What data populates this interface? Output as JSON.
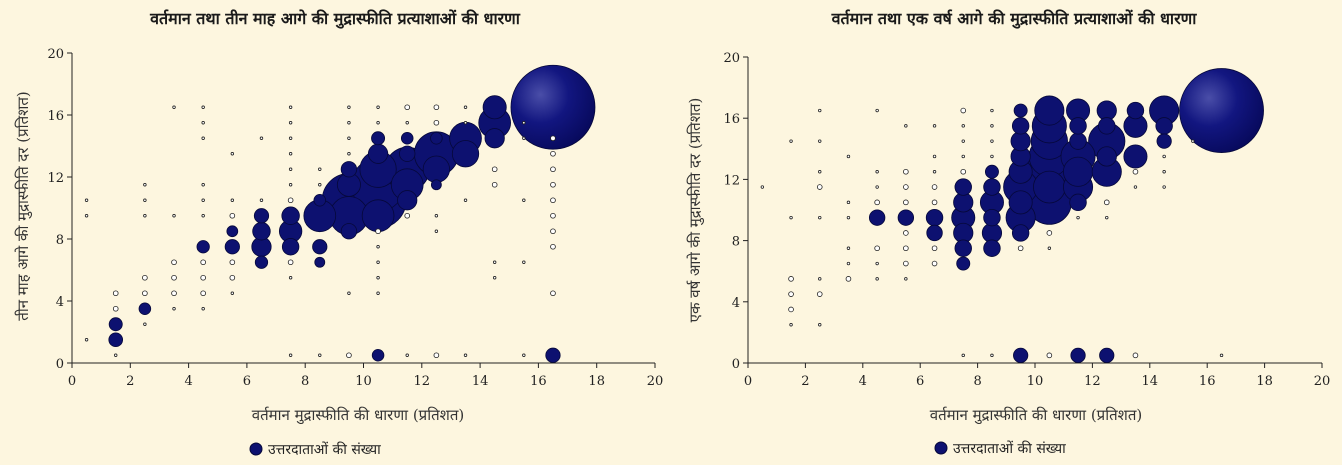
{
  "colors": {
    "background": "#fdf6df",
    "bubble_fill": "#0d1170",
    "bubble_stroke": "#06083a",
    "small_marker_stroke": "#222222"
  },
  "chart_data": [
    {
      "type": "scatter",
      "title": "वर्तमान तथा तीन माह आगे की मुद्रास्फीति प्रत्याशाओं की धारणा",
      "xlabel": "वर्तमान मुद्रास्फीति की धारणा (प्रतिशत)",
      "ylabel": "तीन माह आगे की मुद्रास्फीति दर (प्रतिशत)",
      "xlim": [
        0,
        20
      ],
      "ylim": [
        0,
        20
      ],
      "xticks": [
        "0",
        "2",
        "4",
        "6",
        "8",
        "10",
        "12",
        "14",
        "16",
        "18",
        "20"
      ],
      "yticks": [
        "0",
        "4",
        "8",
        "12",
        "16",
        "20"
      ],
      "legend": "उत्तरदाताओं की संख्या",
      "grid": false,
      "points": [
        [
          0.5,
          1.5,
          1
        ],
        [
          0.5,
          9.5,
          1
        ],
        [
          0.5,
          10.5,
          1
        ],
        [
          1.5,
          0.5,
          1
        ],
        [
          1.5,
          1.5,
          9
        ],
        [
          1.5,
          2.5,
          8
        ],
        [
          1.5,
          3.5,
          2
        ],
        [
          1.5,
          4.5,
          2
        ],
        [
          2.5,
          2.5,
          1
        ],
        [
          2.5,
          3.5,
          6
        ],
        [
          2.5,
          4.5,
          2
        ],
        [
          2.5,
          5.5,
          2
        ],
        [
          2.5,
          9.5,
          1
        ],
        [
          2.5,
          10.5,
          1
        ],
        [
          2.5,
          11.5,
          1
        ],
        [
          3.5,
          3.5,
          1
        ],
        [
          3.5,
          4.5,
          2
        ],
        [
          3.5,
          5.5,
          2
        ],
        [
          3.5,
          6.5,
          2
        ],
        [
          3.5,
          9.5,
          1
        ],
        [
          3.5,
          16.5,
          1
        ],
        [
          4.5,
          3.5,
          1
        ],
        [
          4.5,
          4.5,
          2
        ],
        [
          4.5,
          5.5,
          2
        ],
        [
          4.5,
          6.5,
          2
        ],
        [
          4.5,
          7.5,
          7
        ],
        [
          4.5,
          9.5,
          1
        ],
        [
          4.5,
          10.5,
          1
        ],
        [
          4.5,
          11.5,
          1
        ],
        [
          4.5,
          14.5,
          1
        ],
        [
          4.5,
          15.5,
          1
        ],
        [
          4.5,
          16.5,
          1
        ],
        [
          5.5,
          4.5,
          1
        ],
        [
          5.5,
          5.5,
          2
        ],
        [
          5.5,
          6.5,
          2
        ],
        [
          5.5,
          7.5,
          10
        ],
        [
          5.5,
          8.5,
          5
        ],
        [
          5.5,
          9.5,
          2
        ],
        [
          5.5,
          10.5,
          1
        ],
        [
          5.5,
          13.5,
          1
        ],
        [
          6.5,
          6.5,
          7
        ],
        [
          6.5,
          7.5,
          20
        ],
        [
          6.5,
          8.5,
          16
        ],
        [
          6.5,
          9.5,
          10
        ],
        [
          6.5,
          10.5,
          1
        ],
        [
          6.5,
          14.5,
          1
        ],
        [
          7.5,
          0.5,
          1
        ],
        [
          7.5,
          5.5,
          1
        ],
        [
          7.5,
          6.5,
          2
        ],
        [
          7.5,
          7.5,
          14
        ],
        [
          7.5,
          8.5,
          28
        ],
        [
          7.5,
          9.5,
          16
        ],
        [
          7.5,
          10.5,
          2
        ],
        [
          7.5,
          11.5,
          1
        ],
        [
          7.5,
          12.5,
          1
        ],
        [
          7.5,
          13.5,
          1
        ],
        [
          7.5,
          14.5,
          1
        ],
        [
          7.5,
          15.5,
          1
        ],
        [
          7.5,
          16.5,
          1
        ],
        [
          8.5,
          0.5,
          1
        ],
        [
          8.5,
          6.5,
          4
        ],
        [
          8.5,
          7.5,
          10
        ],
        [
          8.5,
          9.5,
          60
        ],
        [
          8.5,
          10.5,
          6
        ],
        [
          8.5,
          11.5,
          1
        ],
        [
          8.5,
          12.5,
          1
        ],
        [
          9.5,
          0.5,
          2
        ],
        [
          9.5,
          4.5,
          1
        ],
        [
          9.5,
          8.5,
          12
        ],
        [
          9.5,
          9.5,
          90
        ],
        [
          9.5,
          10.5,
          180
        ],
        [
          9.5,
          11.5,
          30
        ],
        [
          9.5,
          12.5,
          12
        ],
        [
          9.5,
          13.5,
          1
        ],
        [
          9.5,
          14.5,
          1
        ],
        [
          9.5,
          15.5,
          1
        ],
        [
          9.5,
          16.5,
          1
        ],
        [
          10.5,
          0.5,
          6
        ],
        [
          10.5,
          4.5,
          1
        ],
        [
          10.5,
          5.5,
          1
        ],
        [
          10.5,
          6.5,
          1
        ],
        [
          10.5,
          7.5,
          1
        ],
        [
          10.5,
          8.5,
          2
        ],
        [
          10.5,
          9.5,
          60
        ],
        [
          10.5,
          10.5,
          200
        ],
        [
          10.5,
          11.5,
          180
        ],
        [
          10.5,
          12.5,
          80
        ],
        [
          10.5,
          13.5,
          20
        ],
        [
          10.5,
          14.5,
          8
        ],
        [
          10.5,
          15.5,
          1
        ],
        [
          10.5,
          16.5,
          1
        ],
        [
          11.5,
          0.5,
          1
        ],
        [
          11.5,
          9.5,
          2
        ],
        [
          11.5,
          10.5,
          20
        ],
        [
          11.5,
          11.5,
          60
        ],
        [
          11.5,
          12.5,
          120
        ],
        [
          11.5,
          13.5,
          12
        ],
        [
          11.5,
          14.5,
          6
        ],
        [
          11.5,
          15.5,
          1
        ],
        [
          11.5,
          16.5,
          2
        ],
        [
          12.5,
          0.5,
          2
        ],
        [
          12.5,
          8.5,
          1
        ],
        [
          12.5,
          9.5,
          1
        ],
        [
          12.5,
          11.5,
          4
        ],
        [
          12.5,
          12.5,
          40
        ],
        [
          12.5,
          13.5,
          120
        ],
        [
          12.5,
          14.5,
          6
        ],
        [
          12.5,
          15.5,
          2
        ],
        [
          12.5,
          16.5,
          2
        ],
        [
          13.5,
          0.5,
          1
        ],
        [
          13.5,
          10.5,
          1
        ],
        [
          13.5,
          13.5,
          40
        ],
        [
          13.5,
          14.5,
          60
        ],
        [
          13.5,
          15.5,
          1
        ],
        [
          13.5,
          16.5,
          1
        ],
        [
          14.5,
          5.5,
          1
        ],
        [
          14.5,
          6.5,
          1
        ],
        [
          14.5,
          11.5,
          2
        ],
        [
          14.5,
          12.5,
          2
        ],
        [
          14.5,
          14.5,
          20
        ],
        [
          14.5,
          15.5,
          60
        ],
        [
          14.5,
          16.5,
          30
        ],
        [
          15.5,
          0.5,
          1
        ],
        [
          15.5,
          6.5,
          1
        ],
        [
          15.5,
          10.5,
          1
        ],
        [
          15.5,
          14.5,
          1
        ],
        [
          15.5,
          15.5,
          1
        ],
        [
          16.5,
          0.5,
          10
        ],
        [
          16.5,
          4.5,
          2
        ],
        [
          16.5,
          7.5,
          2
        ],
        [
          16.5,
          8.5,
          2
        ],
        [
          16.5,
          9.5,
          2
        ],
        [
          16.5,
          10.5,
          2
        ],
        [
          16.5,
          11.5,
          2
        ],
        [
          16.5,
          12.5,
          2
        ],
        [
          16.5,
          13.5,
          2
        ],
        [
          16.5,
          14.5,
          2
        ],
        [
          16.5,
          16.5,
          1500
        ]
      ]
    },
    {
      "type": "scatter",
      "title": "वर्तमान तथा एक वर्ष आगे की मुद्रास्फीति प्रत्याशाओं की धारणा",
      "xlabel": "वर्तमान मुद्रास्फीति की धारणा (प्रतिशत)",
      "ylabel": "एक वर्ष आगे की मुद्रास्फीति दर (प्रतिशत)",
      "xlim": [
        0,
        20
      ],
      "ylim": [
        0,
        20
      ],
      "xticks": [
        "0",
        "2",
        "4",
        "6",
        "8",
        "10",
        "12",
        "14",
        "16",
        "18",
        "20"
      ],
      "yticks": [
        "0",
        "4",
        "8",
        "12",
        "16",
        "20"
      ],
      "legend": "उत्तरदाताओं की संख्या",
      "grid": false,
      "points": [
        [
          0.5,
          11.5,
          1
        ],
        [
          1.5,
          2.5,
          1
        ],
        [
          1.5,
          3.5,
          2
        ],
        [
          1.5,
          4.5,
          2
        ],
        [
          1.5,
          5.5,
          2
        ],
        [
          1.5,
          9.5,
          1
        ],
        [
          1.5,
          14.5,
          1
        ],
        [
          2.5,
          2.5,
          1
        ],
        [
          2.5,
          4.5,
          2
        ],
        [
          2.5,
          5.5,
          1
        ],
        [
          2.5,
          9.5,
          1
        ],
        [
          2.5,
          11.5,
          2
        ],
        [
          2.5,
          12.5,
          1
        ],
        [
          2.5,
          14.5,
          1
        ],
        [
          2.5,
          16.5,
          1
        ],
        [
          3.5,
          5.5,
          2
        ],
        [
          3.5,
          6.5,
          1
        ],
        [
          3.5,
          7.5,
          1
        ],
        [
          3.5,
          9.5,
          1
        ],
        [
          3.5,
          10.5,
          1
        ],
        [
          3.5,
          13.5,
          1
        ],
        [
          4.5,
          5.5,
          1
        ],
        [
          4.5,
          6.5,
          1
        ],
        [
          4.5,
          7.5,
          2
        ],
        [
          4.5,
          9.5,
          12
        ],
        [
          4.5,
          10.5,
          2
        ],
        [
          4.5,
          11.5,
          1
        ],
        [
          4.5,
          12.5,
          1
        ],
        [
          4.5,
          16.5,
          1
        ],
        [
          5.5,
          5.5,
          1
        ],
        [
          5.5,
          6.5,
          2
        ],
        [
          5.5,
          7.5,
          2
        ],
        [
          5.5,
          8.5,
          2
        ],
        [
          5.5,
          9.5,
          12
        ],
        [
          5.5,
          10.5,
          2
        ],
        [
          5.5,
          11.5,
          2
        ],
        [
          5.5,
          12.5,
          2
        ],
        [
          5.5,
          15.5,
          1
        ],
        [
          6.5,
          6.5,
          2
        ],
        [
          6.5,
          7.5,
          2
        ],
        [
          6.5,
          8.5,
          12
        ],
        [
          6.5,
          9.5,
          14
        ],
        [
          6.5,
          10.5,
          2
        ],
        [
          6.5,
          11.5,
          2
        ],
        [
          6.5,
          12.5,
          1
        ],
        [
          6.5,
          13.5,
          1
        ],
        [
          6.5,
          15.5,
          1
        ],
        [
          7.5,
          0.5,
          1
        ],
        [
          7.5,
          6.5,
          8
        ],
        [
          7.5,
          7.5,
          14
        ],
        [
          7.5,
          8.5,
          20
        ],
        [
          7.5,
          9.5,
          30
        ],
        [
          7.5,
          10.5,
          20
        ],
        [
          7.5,
          11.5,
          14
        ],
        [
          7.5,
          12.5,
          2
        ],
        [
          7.5,
          13.5,
          1
        ],
        [
          7.5,
          14.5,
          1
        ],
        [
          7.5,
          15.5,
          1
        ],
        [
          7.5,
          16.5,
          2
        ],
        [
          8.5,
          0.5,
          1
        ],
        [
          8.5,
          7.5,
          14
        ],
        [
          8.5,
          8.5,
          20
        ],
        [
          8.5,
          9.5,
          14
        ],
        [
          8.5,
          10.5,
          30
        ],
        [
          8.5,
          11.5,
          14
        ],
        [
          8.5,
          12.5,
          8
        ],
        [
          8.5,
          13.5,
          1
        ],
        [
          8.5,
          14.5,
          1
        ],
        [
          8.5,
          15.5,
          1
        ],
        [
          8.5,
          16.5,
          1
        ],
        [
          9.5,
          0.5,
          10
        ],
        [
          9.5,
          7.5,
          2
        ],
        [
          9.5,
          8.5,
          14
        ],
        [
          9.5,
          9.5,
          50
        ],
        [
          9.5,
          10.5,
          30
        ],
        [
          9.5,
          11.5,
          70
        ],
        [
          9.5,
          12.5,
          30
        ],
        [
          9.5,
          13.5,
          20
        ],
        [
          9.5,
          14.5,
          20
        ],
        [
          9.5,
          15.5,
          14
        ],
        [
          9.5,
          16.5,
          8
        ],
        [
          10.5,
          0.5,
          2
        ],
        [
          10.5,
          7.5,
          1
        ],
        [
          10.5,
          8.5,
          2
        ],
        [
          10.5,
          10.5,
          120
        ],
        [
          10.5,
          11.5,
          60
        ],
        [
          10.5,
          12.5,
          180
        ],
        [
          10.5,
          13.5,
          100
        ],
        [
          10.5,
          14.5,
          80
        ],
        [
          10.5,
          15.5,
          70
        ],
        [
          10.5,
          16.5,
          50
        ],
        [
          11.5,
          0.5,
          10
        ],
        [
          11.5,
          9.5,
          1
        ],
        [
          11.5,
          10.5,
          14
        ],
        [
          11.5,
          11.5,
          50
        ],
        [
          11.5,
          12.5,
          50
        ],
        [
          11.5,
          13.5,
          70
        ],
        [
          11.5,
          14.5,
          14
        ],
        [
          11.5,
          15.5,
          14
        ],
        [
          11.5,
          16.5,
          30
        ],
        [
          12.5,
          0.5,
          10
        ],
        [
          12.5,
          9.5,
          1
        ],
        [
          12.5,
          10.5,
          2
        ],
        [
          12.5,
          12.5,
          50
        ],
        [
          12.5,
          13.5,
          20
        ],
        [
          12.5,
          14.5,
          80
        ],
        [
          12.5,
          15.5,
          14
        ],
        [
          12.5,
          16.5,
          20
        ],
        [
          13.5,
          0.5,
          2
        ],
        [
          13.5,
          11.5,
          1
        ],
        [
          13.5,
          12.5,
          2
        ],
        [
          13.5,
          13.5,
          30
        ],
        [
          13.5,
          15.5,
          30
        ],
        [
          13.5,
          16.5,
          14
        ],
        [
          14.5,
          11.5,
          1
        ],
        [
          14.5,
          12.5,
          1
        ],
        [
          14.5,
          13.5,
          1
        ],
        [
          14.5,
          14.5,
          10
        ],
        [
          14.5,
          15.5,
          14
        ],
        [
          14.5,
          16.5,
          50
        ],
        [
          15.5,
          14.5,
          1
        ],
        [
          16.5,
          0.5,
          1
        ],
        [
          16.5,
          16.5,
          1700
        ]
      ]
    }
  ]
}
